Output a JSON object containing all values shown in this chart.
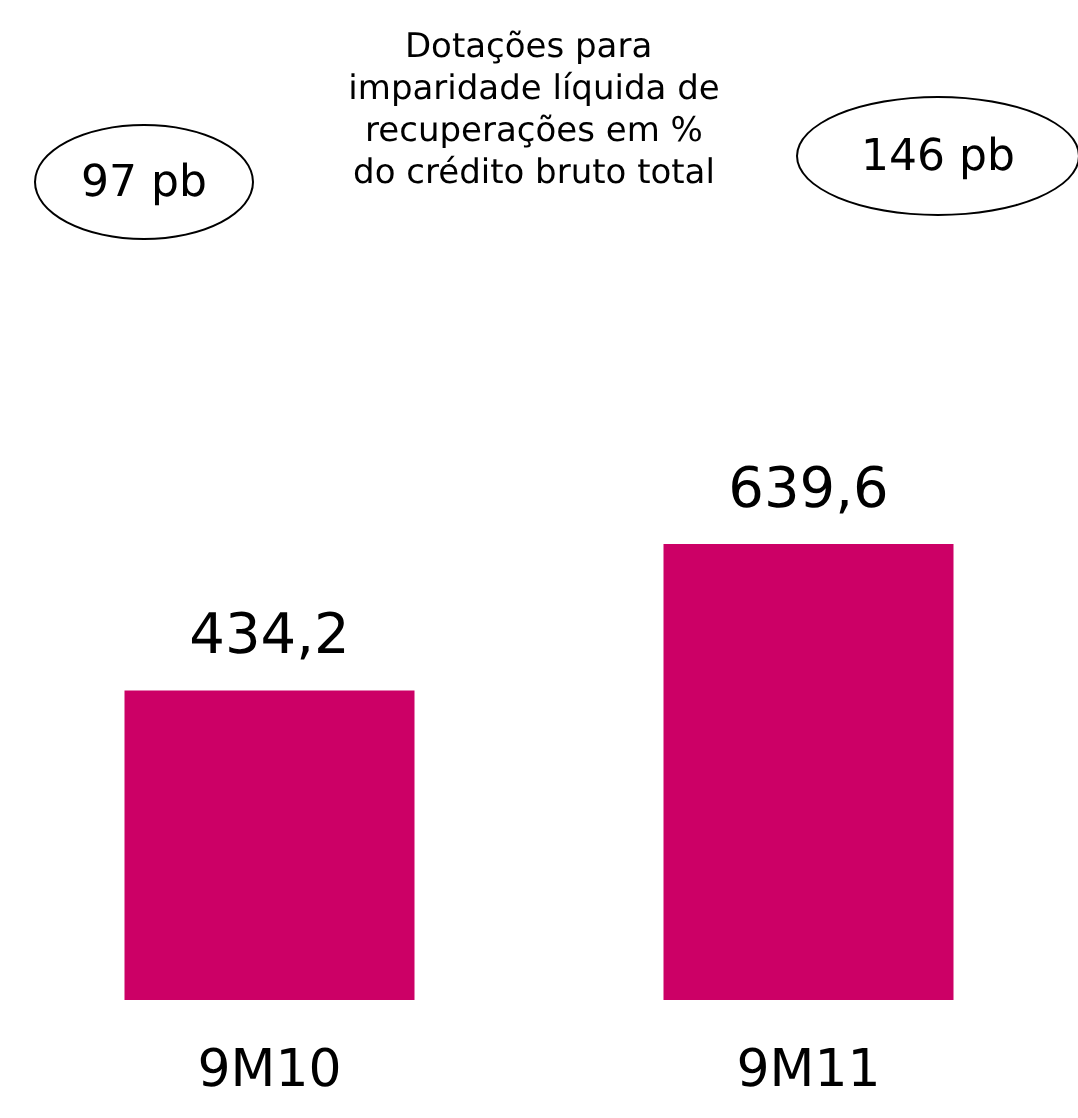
{
  "chart_data": {
    "type": "bar",
    "title": "Dotações para imparidade líquida de recuperações em % do crédito bruto total",
    "categories": [
      "9M10",
      "9M11"
    ],
    "values": [
      434.2,
      639.6
    ],
    "value_labels": [
      "434,2",
      "639,6"
    ],
    "color": "#cc0066",
    "annotations": [
      "97 pb",
      "146 pb"
    ]
  }
}
